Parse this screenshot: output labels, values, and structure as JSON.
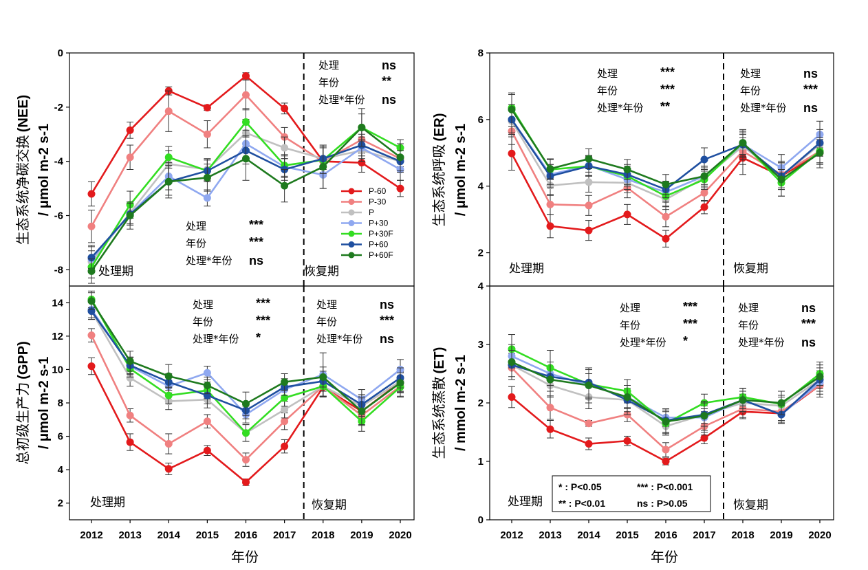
{
  "x_axis_label": "年份",
  "treatment_period": "处理期",
  "recovery_period": "恢复期",
  "significance_key": [
    {
      "code": "* : P<0.05",
      "desc": ""
    },
    {
      "code": "** : P<0.01",
      "desc": ""
    },
    {
      "code": "*** : P<0.001",
      "desc": ""
    },
    {
      "code": "ns : P>0.05",
      "desc": ""
    }
  ],
  "series_colors": {
    "P-60": "#e31a1c",
    "P-30": "#f08080",
    "P": "#c0c0c0",
    "P+30": "#8fa8f0",
    "P+30F": "#33dd22",
    "P+60": "#1f4fa0",
    "P+60F": "#1e7a1e"
  },
  "chart_data": [
    {
      "type": "line",
      "ylabel_cn": "生态系统净碳交换",
      "ylabel_abbr": "(NEE)",
      "yunit": "/ μmol m-2 s-1",
      "ylim": [
        -8.6,
        0
      ],
      "yticks": [
        0,
        -2,
        -4,
        -6,
        -8
      ],
      "x": [
        2012,
        2013,
        2014,
        2015,
        2016,
        2017,
        2018,
        2019,
        2020
      ],
      "legend_position": "lower-right",
      "series": [
        {
          "name": "P-60",
          "values": [
            -5.2,
            -2.85,
            -1.4,
            -2.02,
            -0.85,
            -2.05,
            -4.0,
            -4.05,
            -5.0
          ],
          "err": [
            0.45,
            0.3,
            0.15,
            0.1,
            0.12,
            0.2,
            0.5,
            0.35,
            0.3
          ]
        },
        {
          "name": "P-30",
          "values": [
            -6.4,
            -3.85,
            -2.15,
            -3.0,
            -1.55,
            -3.1,
            -4.0,
            -3.2,
            -3.9
          ],
          "err": [
            0.6,
            0.45,
            0.75,
            0.5,
            0.55,
            0.35,
            0.55,
            0.4,
            0.3
          ]
        },
        {
          "name": "P",
          "values": [
            -7.7,
            -5.9,
            -4.1,
            -4.3,
            -2.95,
            -3.5,
            -3.9,
            -3.6,
            -4.0
          ],
          "err": [
            0.4,
            0.4,
            0.5,
            0.4,
            0.5,
            0.4,
            0.5,
            0.4,
            0.4
          ]
        },
        {
          "name": "P+30",
          "values": [
            -7.6,
            -5.95,
            -4.55,
            -5.35,
            -3.35,
            -4.2,
            -4.5,
            -3.5,
            -4.3
          ],
          "err": [
            0.5,
            0.4,
            0.5,
            0.3,
            0.5,
            0.4,
            0.5,
            0.4,
            0.4
          ]
        },
        {
          "name": "P+30F",
          "values": [
            -7.9,
            -5.6,
            -3.85,
            -4.35,
            -2.55,
            -4.15,
            -3.95,
            -2.75,
            -3.5
          ],
          "err": [
            0.4,
            0.5,
            0.4,
            0.4,
            0.5,
            0.4,
            0.5,
            0.5,
            0.3
          ]
        },
        {
          "name": "P+60",
          "values": [
            -7.55,
            -5.95,
            -4.75,
            -4.35,
            -3.6,
            -4.3,
            -3.9,
            -3.4,
            -4.0
          ],
          "err": [
            0.4,
            0.4,
            0.5,
            0.4,
            0.5,
            0.4,
            0.4,
            0.4,
            0.4
          ]
        },
        {
          "name": "P+60F",
          "values": [
            -8.05,
            -6.0,
            -4.75,
            -4.6,
            -3.9,
            -4.9,
            -4.2,
            -2.75,
            -3.85
          ],
          "err": [
            0.45,
            0.5,
            0.6,
            0.5,
            0.8,
            0.6,
            0.8,
            0.7,
            0.5
          ]
        }
      ],
      "stats_treatment": [
        {
          "factor": "处理",
          "sig": "***"
        },
        {
          "factor": "年份",
          "sig": "***"
        },
        {
          "factor": "处理*年份",
          "sig": "ns"
        }
      ],
      "stats_recovery": [
        {
          "factor": "处理",
          "sig": "ns"
        },
        {
          "factor": "年份",
          "sig": "**"
        },
        {
          "factor": "处理*年份",
          "sig": "ns"
        }
      ]
    },
    {
      "type": "line",
      "ylabel_cn": "生态系统呼吸",
      "ylabel_abbr": "(ER)",
      "yunit": "/ μmol m-2 s-1",
      "ylim": [
        1,
        8
      ],
      "yticks": [
        2,
        4,
        6,
        8
      ],
      "x": [
        2012,
        2013,
        2014,
        2015,
        2016,
        2017,
        2018,
        2019,
        2020
      ],
      "series": [
        {
          "name": "P-60",
          "values": [
            4.98,
            2.8,
            2.67,
            3.15,
            2.42,
            3.37,
            4.85,
            4.3,
            5.0
          ],
          "err": [
            0.5,
            0.35,
            0.3,
            0.3,
            0.25,
            0.2,
            0.5,
            0.4,
            0.35
          ]
        },
        {
          "name": "P-30",
          "values": [
            5.65,
            3.45,
            3.42,
            3.95,
            3.08,
            3.8,
            5.05,
            4.35,
            5.05
          ],
          "err": [
            0.4,
            0.3,
            0.3,
            0.3,
            0.3,
            0.25,
            0.4,
            0.4,
            0.35
          ]
        },
        {
          "name": "P",
          "values": [
            5.95,
            4.02,
            4.12,
            4.1,
            3.6,
            4.25,
            5.2,
            4.3,
            5.25
          ],
          "err": [
            0.4,
            0.3,
            0.3,
            0.3,
            0.3,
            0.3,
            0.4,
            0.4,
            0.35
          ]
        },
        {
          "name": "P+30",
          "values": [
            6.0,
            4.35,
            4.62,
            4.2,
            3.82,
            4.3,
            5.25,
            4.55,
            5.55
          ],
          "err": [
            0.4,
            0.3,
            0.3,
            0.3,
            0.3,
            0.3,
            0.4,
            0.4,
            0.4
          ]
        },
        {
          "name": "P+30F",
          "values": [
            6.35,
            4.5,
            4.6,
            4.3,
            3.7,
            4.2,
            5.3,
            4.1,
            5.05
          ],
          "err": [
            0.4,
            0.3,
            0.3,
            0.3,
            0.3,
            0.3,
            0.4,
            0.4,
            0.35
          ]
        },
        {
          "name": "P+60",
          "values": [
            6.0,
            4.3,
            4.6,
            4.35,
            3.9,
            4.8,
            5.25,
            4.3,
            5.3
          ],
          "err": [
            0.45,
            0.35,
            0.3,
            0.3,
            0.25,
            0.35,
            0.3,
            0.4,
            0.4
          ]
        },
        {
          "name": "P+60F",
          "values": [
            6.3,
            4.52,
            4.82,
            4.5,
            4.05,
            4.3,
            5.3,
            4.2,
            5.0
          ],
          "err": [
            0.5,
            0.3,
            0.3,
            0.3,
            0.3,
            0.3,
            0.35,
            0.5,
            0.45
          ]
        }
      ],
      "stats_treatment": [
        {
          "factor": "处理",
          "sig": "***"
        },
        {
          "factor": "年份",
          "sig": "***"
        },
        {
          "factor": "处理*年份",
          "sig": "**"
        }
      ],
      "stats_recovery": [
        {
          "factor": "处理",
          "sig": "ns"
        },
        {
          "factor": "年份",
          "sig": "***"
        },
        {
          "factor": "处理*年份",
          "sig": "ns"
        }
      ]
    },
    {
      "type": "line",
      "ylabel_cn": "总初级生产力",
      "ylabel_abbr": "(GPP)",
      "yunit": "/ μmol m-2 s-1",
      "ylim": [
        1.0,
        15.0
      ],
      "yticks": [
        2,
        4,
        6,
        8,
        10,
        12,
        14
      ],
      "x": [
        2012,
        2013,
        2014,
        2015,
        2016,
        2017,
        2018,
        2019,
        2020
      ],
      "series": [
        {
          "name": "P-60",
          "values": [
            10.2,
            5.65,
            4.05,
            5.15,
            3.25,
            5.4,
            8.95,
            7.5,
            9.25
          ],
          "err": [
            0.5,
            0.5,
            0.35,
            0.3,
            0.2,
            0.4,
            0.6,
            0.6,
            0.6
          ]
        },
        {
          "name": "P-30",
          "values": [
            12.05,
            7.25,
            5.55,
            6.9,
            4.6,
            6.9,
            9.0,
            7.25,
            9.0
          ],
          "err": [
            0.4,
            0.4,
            0.6,
            0.4,
            0.4,
            0.5,
            0.6,
            0.6,
            0.6
          ]
        },
        {
          "name": "P",
          "values": [
            13.5,
            9.5,
            8.1,
            8.2,
            6.2,
            7.6,
            9.0,
            7.8,
            9.3
          ],
          "err": [
            0.5,
            0.5,
            0.5,
            0.5,
            0.5,
            0.5,
            0.6,
            0.6,
            0.6
          ]
        },
        {
          "name": "P+30",
          "values": [
            13.6,
            10.2,
            9.0,
            9.8,
            7.3,
            8.8,
            9.7,
            8.2,
            10.0
          ],
          "err": [
            0.5,
            0.5,
            0.5,
            0.4,
            0.5,
            0.5,
            1.3,
            0.6,
            0.6
          ]
        },
        {
          "name": "P+30F",
          "values": [
            14.2,
            10.05,
            8.45,
            8.75,
            6.2,
            8.3,
            9.0,
            6.9,
            8.95
          ],
          "err": [
            0.5,
            0.5,
            0.5,
            0.5,
            0.5,
            0.5,
            0.6,
            0.6,
            0.6
          ]
        },
        {
          "name": "P+60",
          "values": [
            13.5,
            10.25,
            9.25,
            8.45,
            7.55,
            8.95,
            9.3,
            7.9,
            9.5
          ],
          "err": [
            0.5,
            0.5,
            0.5,
            0.5,
            0.5,
            0.5,
            0.6,
            0.6,
            0.6
          ]
        },
        {
          "name": "P+60F",
          "values": [
            14.1,
            10.5,
            9.6,
            9.05,
            7.95,
            9.25,
            9.55,
            7.5,
            9.2
          ],
          "err": [
            0.5,
            0.6,
            0.7,
            0.5,
            0.7,
            0.5,
            0.6,
            0.8,
            0.6
          ]
        }
      ],
      "stats_treatment": [
        {
          "factor": "处理",
          "sig": "***"
        },
        {
          "factor": "年份",
          "sig": "***"
        },
        {
          "factor": "处理*年份",
          "sig": "*"
        }
      ],
      "stats_recovery": [
        {
          "factor": "处理",
          "sig": "ns"
        },
        {
          "factor": "年份",
          "sig": "***"
        },
        {
          "factor": "处理*年份",
          "sig": "ns"
        }
      ]
    },
    {
      "type": "line",
      "ylabel_cn": "生态系统蒸散",
      "ylabel_abbr": "(ET)",
      "yunit": "/ mmol m-2 s-1",
      "ylim": [
        0,
        4
      ],
      "yticks": [
        0,
        1,
        2,
        3,
        4
      ],
      "x": [
        2012,
        2013,
        2014,
        2015,
        2016,
        2017,
        2018,
        2019,
        2020
      ],
      "series": [
        {
          "name": "P-60",
          "values": [
            2.1,
            1.55,
            1.3,
            1.35,
            1.0,
            1.4,
            1.85,
            1.82,
            2.3
          ],
          "err": [
            0.18,
            0.15,
            0.1,
            0.08,
            0.06,
            0.1,
            0.12,
            0.15,
            0.2
          ]
        },
        {
          "name": "P-30",
          "values": [
            2.6,
            1.92,
            1.65,
            1.8,
            1.2,
            1.6,
            1.9,
            1.85,
            2.3
          ],
          "err": [
            0.2,
            0.2,
            0.05,
            0.12,
            0.12,
            0.15,
            0.15,
            0.15,
            0.2
          ]
        },
        {
          "name": "P",
          "values": [
            2.65,
            2.3,
            2.1,
            2.05,
            1.6,
            1.8,
            2.0,
            1.95,
            2.4
          ],
          "err": [
            0.2,
            0.2,
            0.2,
            0.2,
            0.15,
            0.15,
            0.15,
            0.15,
            0.2
          ]
        },
        {
          "name": "P+30",
          "values": [
            2.8,
            2.5,
            2.3,
            2.1,
            1.75,
            1.75,
            2.05,
            1.8,
            2.35
          ],
          "err": [
            0.2,
            0.2,
            0.2,
            0.2,
            0.15,
            0.15,
            0.15,
            0.15,
            0.2
          ]
        },
        {
          "name": "P+30F",
          "values": [
            2.92,
            2.6,
            2.32,
            2.2,
            1.65,
            2.0,
            2.1,
            1.98,
            2.5
          ],
          "err": [
            0.25,
            0.3,
            0.25,
            0.2,
            0.2,
            0.15,
            0.15,
            0.15,
            0.2
          ]
        },
        {
          "name": "P+60",
          "values": [
            2.65,
            2.45,
            2.35,
            2.05,
            1.7,
            1.8,
            2.05,
            1.8,
            2.4
          ],
          "err": [
            0.25,
            0.25,
            0.25,
            0.25,
            0.2,
            0.2,
            0.2,
            0.15,
            0.2
          ]
        },
        {
          "name": "P+60F",
          "values": [
            2.7,
            2.4,
            2.3,
            2.1,
            1.68,
            1.78,
            2.05,
            2.0,
            2.45
          ],
          "err": [
            0.3,
            0.3,
            0.3,
            0.3,
            0.2,
            0.25,
            0.2,
            0.2,
            0.2
          ]
        }
      ],
      "stats_treatment": [
        {
          "factor": "处理",
          "sig": "***"
        },
        {
          "factor": "年份",
          "sig": "***"
        },
        {
          "factor": "处理*年份",
          "sig": "*"
        }
      ],
      "stats_recovery": [
        {
          "factor": "处理",
          "sig": "ns"
        },
        {
          "factor": "年份",
          "sig": "***"
        },
        {
          "factor": "处理*年份",
          "sig": "ns"
        }
      ]
    }
  ]
}
